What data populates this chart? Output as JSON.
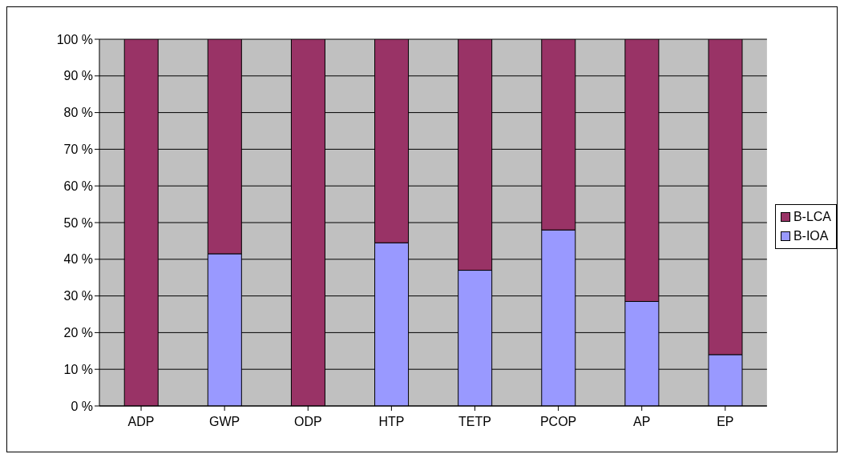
{
  "chart_data": {
    "type": "bar",
    "stacked": true,
    "categories": [
      "ADP",
      "GWP",
      "ODP",
      "HTP",
      "TETP",
      "PCOP",
      "AP",
      "EP"
    ],
    "series": [
      {
        "name": "B-IOA",
        "color": "#9999ff",
        "values": [
          0,
          41.5,
          0,
          44.5,
          37,
          48,
          28.5,
          14
        ]
      },
      {
        "name": "B-LCA",
        "color": "#993366",
        "values": [
          100,
          58.5,
          100,
          55.5,
          63,
          52,
          71.5,
          86
        ]
      }
    ],
    "ylim": [
      0,
      100
    ],
    "yticks": [
      {
        "value": 0,
        "label": "0 %"
      },
      {
        "value": 10,
        "label": "10 %"
      },
      {
        "value": 20,
        "label": "20 %"
      },
      {
        "value": 30,
        "label": "30 %"
      },
      {
        "value": 40,
        "label": "40 %"
      },
      {
        "value": 50,
        "label": "50 %"
      },
      {
        "value": 60,
        "label": "60 %"
      },
      {
        "value": 70,
        "label": "70 %"
      },
      {
        "value": 80,
        "label": "80 %"
      },
      {
        "value": 90,
        "label": "90 %"
      },
      {
        "value": 100,
        "label": "100 %"
      }
    ],
    "grid": "y",
    "legend": "right"
  }
}
